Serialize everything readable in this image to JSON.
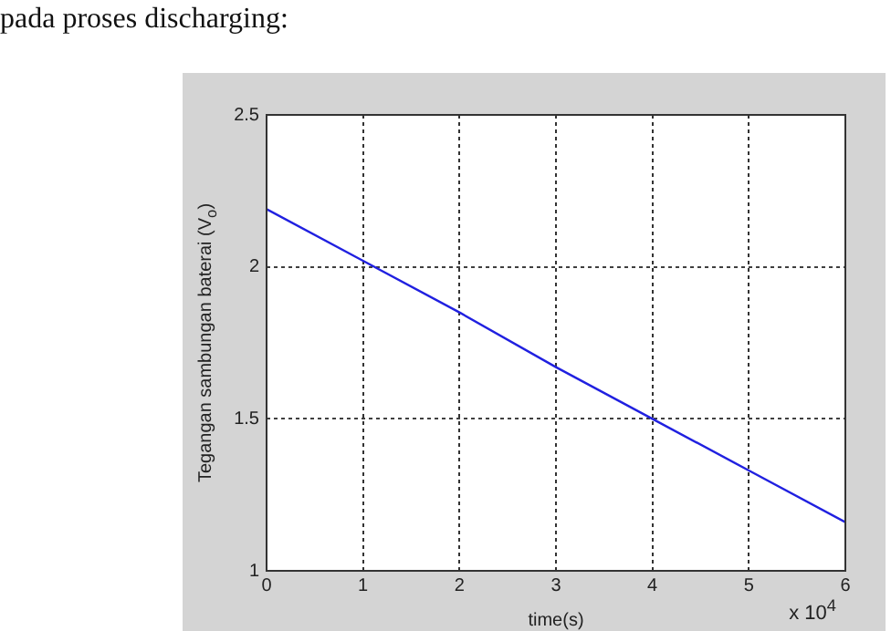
{
  "chart_data": {
    "type": "line",
    "xlabel": "time(s)",
    "ylabel": "Tegangan sambungan baterai (V$_{o}$)",
    "x": [
      0,
      1,
      2,
      3,
      4,
      5,
      6
    ],
    "series": [
      {
        "color": "#2020e0",
        "values": [
          2.19,
          2.02,
          1.85,
          1.67,
          1.5,
          1.33,
          1.16
        ]
      }
    ],
    "xlim": [
      0,
      6
    ],
    "xticks": [
      0,
      1,
      2,
      3,
      4,
      5,
      6
    ],
    "ylim": [
      1,
      2.5
    ],
    "yticks": [
      1,
      1.5,
      2,
      2.5
    ],
    "annotations": [
      "pada proses discharging:",
      "x 10$^{4}$"
    ],
    "grid": true,
    "line_style": "solid",
    "marker": "none",
    "legend": false
  }
}
